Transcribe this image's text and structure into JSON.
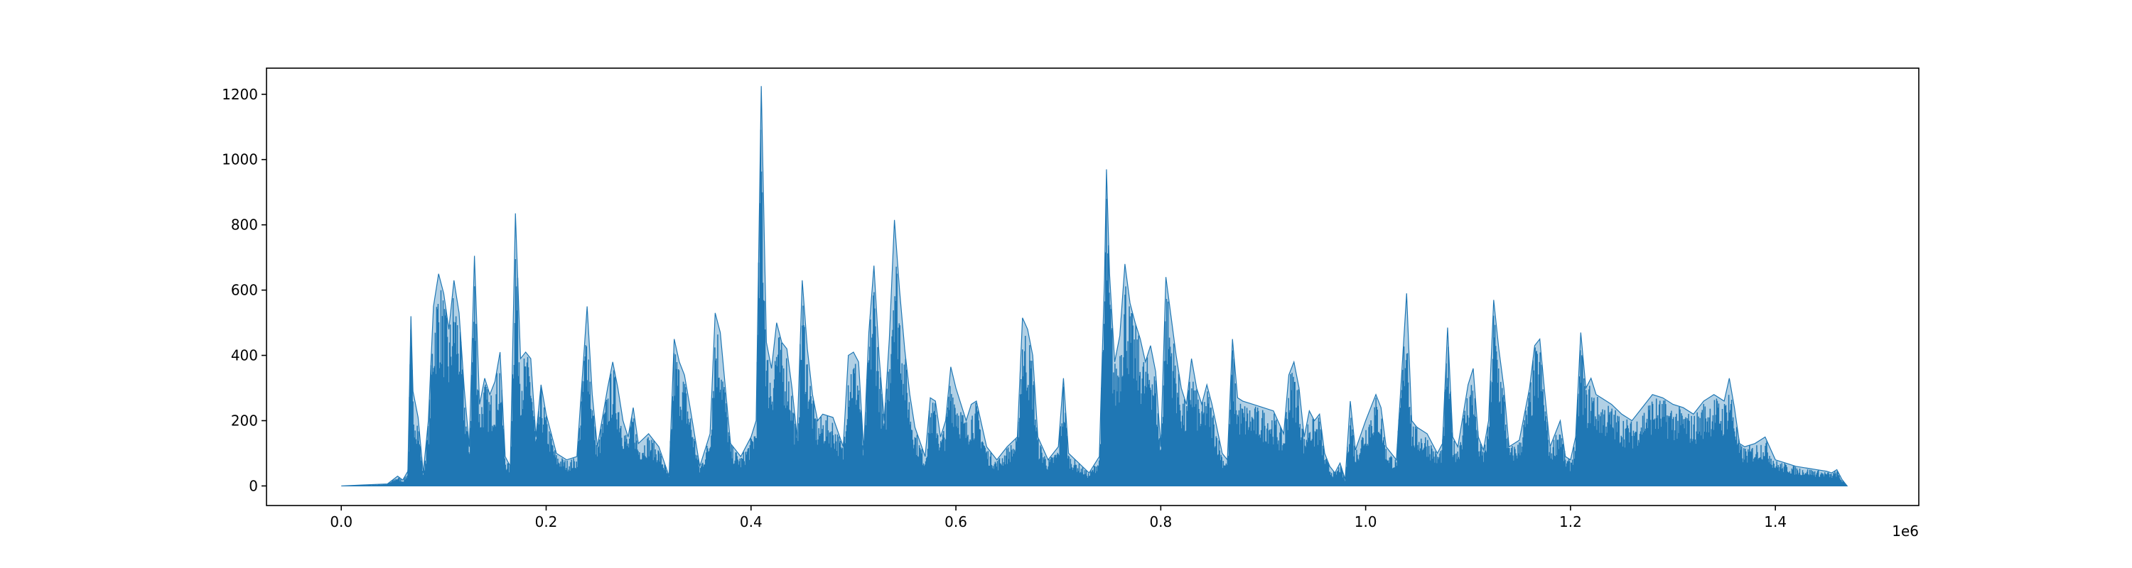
{
  "chart_data": {
    "type": "area",
    "title": "",
    "xlabel": "",
    "ylabel": "",
    "x_offset_label": "1e6",
    "x_scale": 1000000,
    "xlim": [
      -0.073,
      1.54
    ],
    "ylim": [
      -60,
      1280
    ],
    "x_ticks": [
      0,
      0.2,
      0.4,
      0.6,
      0.8,
      1.0,
      1.2,
      1.4
    ],
    "x_tick_labels": [
      "0.0",
      "0.2",
      "0.4",
      "0.6",
      "0.8",
      "1.0",
      "1.2",
      "1.4"
    ],
    "y_ticks": [
      0,
      200,
      400,
      600,
      800,
      1000,
      1200
    ],
    "y_tick_labels": [
      "0",
      "200",
      "400",
      "600",
      "800",
      "1000",
      "1200"
    ],
    "grid": false,
    "color": "#1f77b4",
    "series": [
      {
        "name": "",
        "envelope": [
          [
            0.0,
            0
          ],
          [
            0.02,
            3
          ],
          [
            0.045,
            6
          ],
          [
            0.055,
            30
          ],
          [
            0.06,
            18
          ],
          [
            0.065,
            45
          ],
          [
            0.068,
            520
          ],
          [
            0.07,
            290
          ],
          [
            0.075,
            210
          ],
          [
            0.08,
            40
          ],
          [
            0.085,
            200
          ],
          [
            0.09,
            550
          ],
          [
            0.095,
            650
          ],
          [
            0.1,
            590
          ],
          [
            0.105,
            480
          ],
          [
            0.11,
            630
          ],
          [
            0.115,
            530
          ],
          [
            0.12,
            300
          ],
          [
            0.125,
            120
          ],
          [
            0.13,
            705
          ],
          [
            0.135,
            250
          ],
          [
            0.14,
            330
          ],
          [
            0.145,
            280
          ],
          [
            0.15,
            320
          ],
          [
            0.155,
            410
          ],
          [
            0.16,
            90
          ],
          [
            0.165,
            60
          ],
          [
            0.17,
            835
          ],
          [
            0.175,
            390
          ],
          [
            0.18,
            410
          ],
          [
            0.185,
            390
          ],
          [
            0.19,
            150
          ],
          [
            0.195,
            310
          ],
          [
            0.2,
            220
          ],
          [
            0.21,
            100
          ],
          [
            0.22,
            80
          ],
          [
            0.23,
            90
          ],
          [
            0.24,
            550
          ],
          [
            0.245,
            280
          ],
          [
            0.25,
            120
          ],
          [
            0.26,
            300
          ],
          [
            0.265,
            380
          ],
          [
            0.27,
            300
          ],
          [
            0.275,
            200
          ],
          [
            0.28,
            150
          ],
          [
            0.285,
            240
          ],
          [
            0.29,
            130
          ],
          [
            0.3,
            160
          ],
          [
            0.31,
            120
          ],
          [
            0.32,
            30
          ],
          [
            0.325,
            450
          ],
          [
            0.33,
            380
          ],
          [
            0.335,
            340
          ],
          [
            0.34,
            250
          ],
          [
            0.35,
            60
          ],
          [
            0.36,
            160
          ],
          [
            0.365,
            530
          ],
          [
            0.37,
            470
          ],
          [
            0.375,
            300
          ],
          [
            0.38,
            130
          ],
          [
            0.39,
            90
          ],
          [
            0.4,
            150
          ],
          [
            0.405,
            200
          ],
          [
            0.41,
            1225
          ],
          [
            0.415,
            440
          ],
          [
            0.42,
            360
          ],
          [
            0.425,
            500
          ],
          [
            0.43,
            440
          ],
          [
            0.435,
            420
          ],
          [
            0.44,
            300
          ],
          [
            0.445,
            150
          ],
          [
            0.45,
            630
          ],
          [
            0.455,
            420
          ],
          [
            0.46,
            280
          ],
          [
            0.465,
            200
          ],
          [
            0.47,
            220
          ],
          [
            0.48,
            210
          ],
          [
            0.49,
            120
          ],
          [
            0.495,
            400
          ],
          [
            0.5,
            410
          ],
          [
            0.505,
            380
          ],
          [
            0.51,
            110
          ],
          [
            0.515,
            470
          ],
          [
            0.52,
            675
          ],
          [
            0.525,
            400
          ],
          [
            0.53,
            200
          ],
          [
            0.535,
            450
          ],
          [
            0.54,
            815
          ],
          [
            0.545,
            600
          ],
          [
            0.55,
            420
          ],
          [
            0.555,
            280
          ],
          [
            0.56,
            180
          ],
          [
            0.57,
            90
          ],
          [
            0.575,
            270
          ],
          [
            0.58,
            260
          ],
          [
            0.585,
            150
          ],
          [
            0.59,
            200
          ],
          [
            0.595,
            365
          ],
          [
            0.6,
            300
          ],
          [
            0.61,
            200
          ],
          [
            0.615,
            250
          ],
          [
            0.62,
            260
          ],
          [
            0.63,
            120
          ],
          [
            0.64,
            80
          ],
          [
            0.65,
            120
          ],
          [
            0.66,
            150
          ],
          [
            0.665,
            515
          ],
          [
            0.67,
            480
          ],
          [
            0.675,
            400
          ],
          [
            0.68,
            150
          ],
          [
            0.69,
            80
          ],
          [
            0.7,
            120
          ],
          [
            0.705,
            330
          ],
          [
            0.71,
            100
          ],
          [
            0.72,
            70
          ],
          [
            0.73,
            40
          ],
          [
            0.74,
            90
          ],
          [
            0.745,
            630
          ],
          [
            0.747,
            970
          ],
          [
            0.75,
            650
          ],
          [
            0.755,
            380
          ],
          [
            0.76,
            460
          ],
          [
            0.765,
            680
          ],
          [
            0.77,
            560
          ],
          [
            0.775,
            500
          ],
          [
            0.78,
            450
          ],
          [
            0.785,
            380
          ],
          [
            0.79,
            430
          ],
          [
            0.795,
            350
          ],
          [
            0.8,
            120
          ],
          [
            0.805,
            640
          ],
          [
            0.81,
            520
          ],
          [
            0.815,
            400
          ],
          [
            0.82,
            300
          ],
          [
            0.825,
            250
          ],
          [
            0.83,
            390
          ],
          [
            0.835,
            300
          ],
          [
            0.84,
            250
          ],
          [
            0.845,
            310
          ],
          [
            0.85,
            250
          ],
          [
            0.86,
            100
          ],
          [
            0.865,
            80
          ],
          [
            0.87,
            450
          ],
          [
            0.875,
            270
          ],
          [
            0.88,
            260
          ],
          [
            0.89,
            250
          ],
          [
            0.9,
            240
          ],
          [
            0.91,
            230
          ],
          [
            0.92,
            160
          ],
          [
            0.925,
            340
          ],
          [
            0.93,
            380
          ],
          [
            0.935,
            300
          ],
          [
            0.94,
            150
          ],
          [
            0.945,
            230
          ],
          [
            0.95,
            200
          ],
          [
            0.955,
            220
          ],
          [
            0.96,
            100
          ],
          [
            0.965,
            60
          ],
          [
            0.97,
            40
          ],
          [
            0.975,
            70
          ],
          [
            0.98,
            20
          ],
          [
            0.985,
            260
          ],
          [
            0.99,
            110
          ],
          [
            1.0,
            200
          ],
          [
            1.005,
            240
          ],
          [
            1.01,
            280
          ],
          [
            1.015,
            240
          ],
          [
            1.02,
            120
          ],
          [
            1.03,
            80
          ],
          [
            1.04,
            590
          ],
          [
            1.045,
            200
          ],
          [
            1.05,
            180
          ],
          [
            1.06,
            160
          ],
          [
            1.07,
            100
          ],
          [
            1.075,
            130
          ],
          [
            1.08,
            485
          ],
          [
            1.085,
            150
          ],
          [
            1.09,
            120
          ],
          [
            1.1,
            310
          ],
          [
            1.105,
            360
          ],
          [
            1.11,
            150
          ],
          [
            1.115,
            110
          ],
          [
            1.12,
            200
          ],
          [
            1.125,
            570
          ],
          [
            1.13,
            420
          ],
          [
            1.135,
            300
          ],
          [
            1.14,
            120
          ],
          [
            1.15,
            140
          ],
          [
            1.16,
            300
          ],
          [
            1.165,
            430
          ],
          [
            1.17,
            450
          ],
          [
            1.175,
            280
          ],
          [
            1.18,
            120
          ],
          [
            1.19,
            200
          ],
          [
            1.195,
            90
          ],
          [
            1.2,
            80
          ],
          [
            1.205,
            150
          ],
          [
            1.21,
            470
          ],
          [
            1.215,
            300
          ],
          [
            1.22,
            330
          ],
          [
            1.225,
            280
          ],
          [
            1.23,
            270
          ],
          [
            1.24,
            250
          ],
          [
            1.25,
            220
          ],
          [
            1.26,
            200
          ],
          [
            1.27,
            240
          ],
          [
            1.28,
            280
          ],
          [
            1.29,
            270
          ],
          [
            1.3,
            250
          ],
          [
            1.31,
            240
          ],
          [
            1.32,
            220
          ],
          [
            1.33,
            260
          ],
          [
            1.34,
            280
          ],
          [
            1.35,
            260
          ],
          [
            1.355,
            330
          ],
          [
            1.36,
            240
          ],
          [
            1.365,
            130
          ],
          [
            1.37,
            120
          ],
          [
            1.38,
            130
          ],
          [
            1.39,
            150
          ],
          [
            1.4,
            80
          ],
          [
            1.41,
            70
          ],
          [
            1.42,
            60
          ],
          [
            1.43,
            55
          ],
          [
            1.44,
            50
          ],
          [
            1.45,
            45
          ],
          [
            1.455,
            40
          ],
          [
            1.46,
            50
          ],
          [
            1.465,
            20
          ],
          [
            1.47,
            0
          ]
        ]
      }
    ]
  }
}
